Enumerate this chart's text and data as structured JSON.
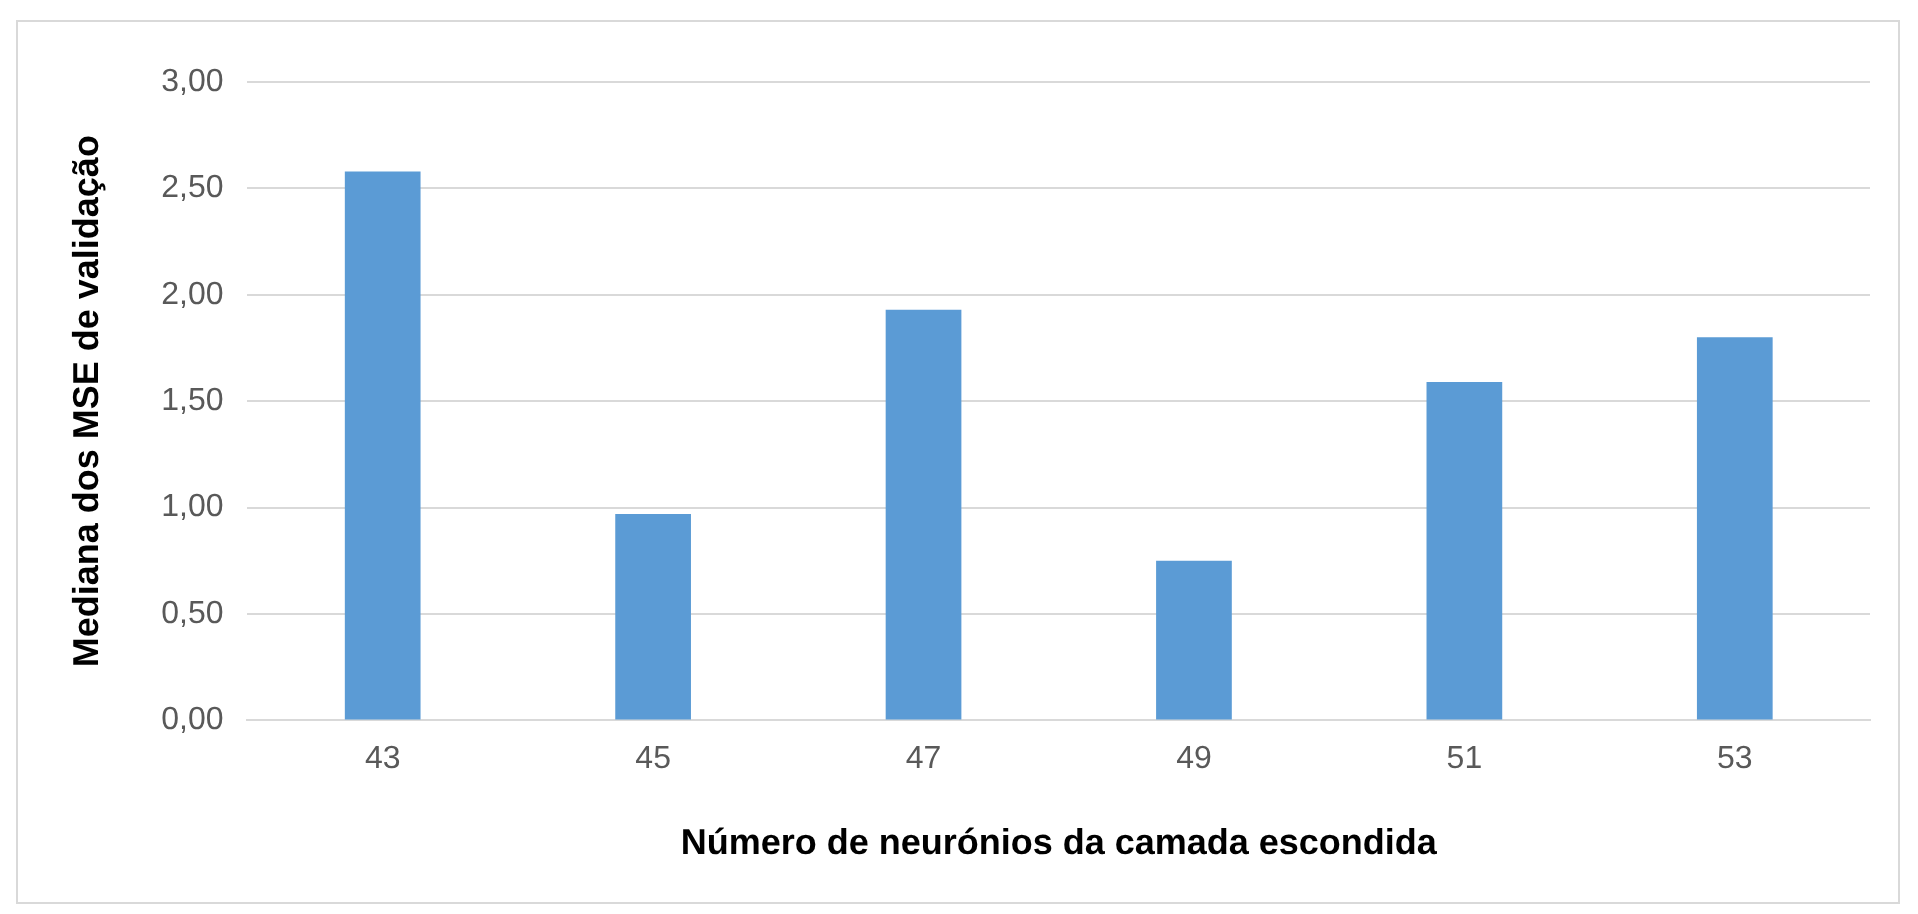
{
  "chart_data": {
    "type": "bar",
    "xlabel": "Número de neurónios da camada escondida",
    "ylabel": "Mediana dos MSE de validação",
    "categories": [
      "43",
      "45",
      "47",
      "49",
      "51",
      "53"
    ],
    "values": [
      2.58,
      0.97,
      1.93,
      0.75,
      1.59,
      1.8
    ],
    "color": "#5b9bd5",
    "ylim": [
      0,
      3
    ],
    "yticks": [
      {
        "value": 0,
        "label": "0,00"
      },
      {
        "value": 0.5,
        "label": "0,50"
      },
      {
        "value": 1,
        "label": "1,00"
      },
      {
        "value": 1.5,
        "label": "1,50"
      },
      {
        "value": 2,
        "label": "2,00"
      },
      {
        "value": 2.5,
        "label": "2,50"
      },
      {
        "value": 3,
        "label": "3,00"
      }
    ],
    "grid": "y",
    "legend": false
  }
}
